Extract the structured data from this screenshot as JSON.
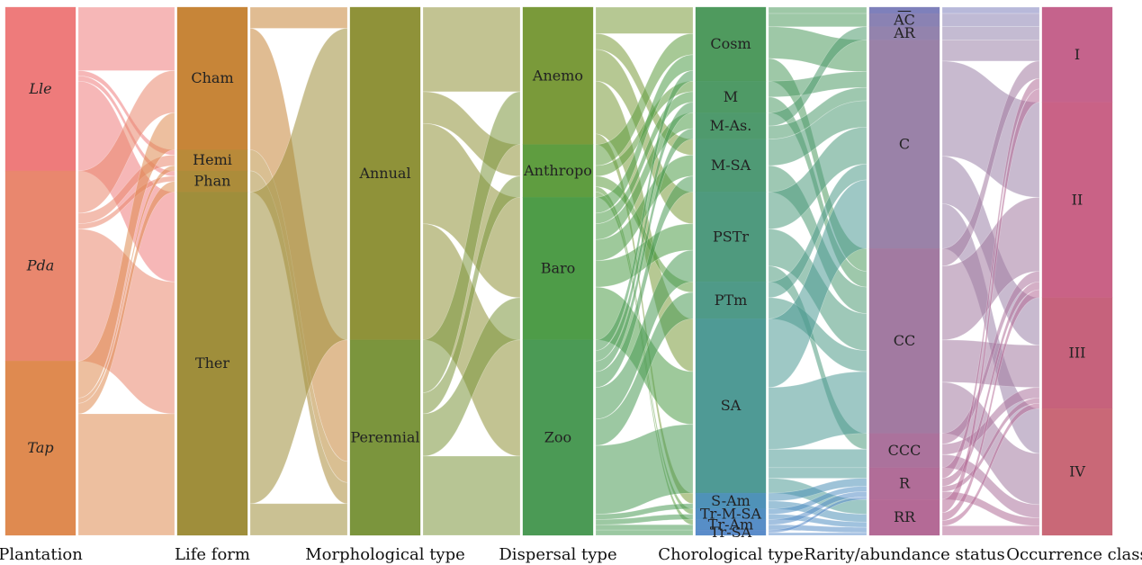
{
  "chart_data": {
    "type": "sankey",
    "title": "",
    "columns": [
      {
        "key": "plantation",
        "label": "Plantation",
        "italic": true,
        "nodes": [
          {
            "name": "Lle",
            "value": 31,
            "color": "#ee7b7b"
          },
          {
            "name": "Pda",
            "value": 36,
            "color": "#e9876e"
          },
          {
            "name": "Tap",
            "value": 33,
            "color": "#df8a50"
          }
        ]
      },
      {
        "key": "life_form",
        "label": "Life form",
        "nodes": [
          {
            "name": "Cham",
            "value": 27,
            "color": "#c78538"
          },
          {
            "name": "Hemi",
            "value": 4,
            "color": "#b98a39"
          },
          {
            "name": "Phan",
            "value": 4,
            "color": "#ac8c3a"
          },
          {
            "name": "Ther",
            "value": 65,
            "color": "#9f8e3b"
          }
        ]
      },
      {
        "key": "morphological_type",
        "label": "Morphological type",
        "nodes": [
          {
            "name": "Annual",
            "value": 63,
            "color": "#8f9239"
          },
          {
            "name": "Perennial",
            "value": 37,
            "color": "#7b953d"
          }
        ]
      },
      {
        "key": "dispersal_type",
        "label": "Dispersal type",
        "nodes": [
          {
            "name": "Anemo",
            "value": 26,
            "color": "#7a9a3a"
          },
          {
            "name": "Anthropo",
            "value": 10,
            "color": "#5f9d40"
          },
          {
            "name": "Baro",
            "value": 27,
            "color": "#4e9c48"
          },
          {
            "name": "Zoo",
            "value": 37,
            "color": "#4b9a55"
          }
        ]
      },
      {
        "key": "chorological_type",
        "label": "Chorological type",
        "nodes": [
          {
            "name": "Cosm",
            "value": 14,
            "color": "#4f9a5e"
          },
          {
            "name": "M",
            "value": 6,
            "color": "#4f9a66"
          },
          {
            "name": "M-As.",
            "value": 5,
            "color": "#4f9a6d"
          },
          {
            "name": "M-SA",
            "value": 10,
            "color": "#4f9a75"
          },
          {
            "name": "PSTr",
            "value": 17,
            "color": "#4f9a7e"
          },
          {
            "name": "PTm",
            "value": 7,
            "color": "#4f9a88"
          },
          {
            "name": "SA",
            "value": 33,
            "color": "#4f9a95"
          },
          {
            "name": "S-Am",
            "value": 3,
            "color": "#4f92b8"
          },
          {
            "name": "Tr-M-SA",
            "value": 2,
            "color": "#528fc2"
          },
          {
            "name": "Tr-Am",
            "value": 2,
            "color": "#578ec7"
          },
          {
            "name": "Tr-SA",
            "value": 1,
            "color": "#5b8cca"
          }
        ]
      },
      {
        "key": "rarity_abundance_status",
        "label": "Rarity/abundance status",
        "nodes": [
          {
            "name": "—",
            "value": 1.2,
            "color": "#7e80bb"
          },
          {
            "name": "AC",
            "value": 2.5,
            "color": "#8a82b3"
          },
          {
            "name": "AR",
            "value": 2.5,
            "color": "#9383ad"
          },
          {
            "name": "C",
            "value": 39.5,
            "color": "#9a82a8"
          },
          {
            "name": "CC",
            "value": 35,
            "color": "#a27aa1"
          },
          {
            "name": "CCC",
            "value": 6.5,
            "color": "#ab729c"
          },
          {
            "name": "R",
            "value": 6,
            "color": "#b16d98"
          },
          {
            "name": "RR",
            "value": 6.8,
            "color": "#b46a96"
          }
        ]
      },
      {
        "key": "occurrence_class",
        "label": "Occurrence class",
        "nodes": [
          {
            "name": "I",
            "value": 18,
            "color": "#c5638c"
          },
          {
            "name": "II",
            "value": 37,
            "color": "#c96286"
          },
          {
            "name": "III",
            "value": 21,
            "color": "#c6627c"
          },
          {
            "name": "IV",
            "value": 24,
            "color": "#c96877"
          }
        ]
      }
    ],
    "links": [
      {
        "stage": 0,
        "source": "Lle",
        "target": "Cham",
        "value": 12
      },
      {
        "stage": 0,
        "source": "Lle",
        "target": "Hemi",
        "value": 1
      },
      {
        "stage": 0,
        "source": "Lle",
        "target": "Phan",
        "value": 1
      },
      {
        "stage": 0,
        "source": "Lle",
        "target": "Ther",
        "value": 17
      },
      {
        "stage": 0,
        "source": "Pda",
        "target": "Cham",
        "value": 8
      },
      {
        "stage": 0,
        "source": "Pda",
        "target": "Hemi",
        "value": 2
      },
      {
        "stage": 0,
        "source": "Pda",
        "target": "Phan",
        "value": 1
      },
      {
        "stage": 0,
        "source": "Pda",
        "target": "Ther",
        "value": 25
      },
      {
        "stage": 0,
        "source": "Tap",
        "target": "Cham",
        "value": 7
      },
      {
        "stage": 0,
        "source": "Tap",
        "target": "Hemi",
        "value": 1
      },
      {
        "stage": 0,
        "source": "Tap",
        "target": "Phan",
        "value": 2
      },
      {
        "stage": 0,
        "source": "Tap",
        "target": "Ther",
        "value": 23
      },
      {
        "stage": 1,
        "source": "Cham",
        "target": "Annual",
        "value": 4
      },
      {
        "stage": 1,
        "source": "Cham",
        "target": "Perennial",
        "value": 23
      },
      {
        "stage": 1,
        "source": "Hemi",
        "target": "Perennial",
        "value": 4
      },
      {
        "stage": 1,
        "source": "Phan",
        "target": "Perennial",
        "value": 4
      },
      {
        "stage": 1,
        "source": "Ther",
        "target": "Annual",
        "value": 59
      },
      {
        "stage": 1,
        "source": "Ther",
        "target": "Perennial",
        "value": 6
      },
      {
        "stage": 2,
        "source": "Annual",
        "target": "Anemo",
        "value": 16
      },
      {
        "stage": 2,
        "source": "Annual",
        "target": "Anthropo",
        "value": 6
      },
      {
        "stage": 2,
        "source": "Annual",
        "target": "Baro",
        "value": 19
      },
      {
        "stage": 2,
        "source": "Annual",
        "target": "Zoo",
        "value": 22
      },
      {
        "stage": 2,
        "source": "Perennial",
        "target": "Anemo",
        "value": 10
      },
      {
        "stage": 2,
        "source": "Perennial",
        "target": "Anthropo",
        "value": 4
      },
      {
        "stage": 2,
        "source": "Perennial",
        "target": "Baro",
        "value": 8
      },
      {
        "stage": 2,
        "source": "Perennial",
        "target": "Zoo",
        "value": 15
      },
      {
        "stage": 3,
        "source": "Anemo",
        "target": "Cosm",
        "value": 5
      },
      {
        "stage": 3,
        "source": "Anemo",
        "target": "M-SA",
        "value": 3
      },
      {
        "stage": 3,
        "source": "Anemo",
        "target": "PSTr",
        "value": 6
      },
      {
        "stage": 3,
        "source": "Anemo",
        "target": "SA",
        "value": 10
      },
      {
        "stage": 3,
        "source": "Anemo",
        "target": "S-Am",
        "value": 2
      },
      {
        "stage": 3,
        "source": "Anthropo",
        "target": "Cosm",
        "value": 4
      },
      {
        "stage": 3,
        "source": "Anthropo",
        "target": "M",
        "value": 2
      },
      {
        "stage": 3,
        "source": "Anthropo",
        "target": "PTm",
        "value": 2
      },
      {
        "stage": 3,
        "source": "Anthropo",
        "target": "Tr-M-SA",
        "value": 1
      },
      {
        "stage": 3,
        "source": "Anthropo",
        "target": "Tr-Am",
        "value": 1
      },
      {
        "stage": 3,
        "source": "Baro",
        "target": "Cosm",
        "value": 3
      },
      {
        "stage": 3,
        "source": "Baro",
        "target": "M",
        "value": 2
      },
      {
        "stage": 3,
        "source": "Baro",
        "target": "M-As.",
        "value": 3
      },
      {
        "stage": 3,
        "source": "Baro",
        "target": "M-SA",
        "value": 4
      },
      {
        "stage": 3,
        "source": "Baro",
        "target": "PSTr",
        "value": 5
      },
      {
        "stage": 3,
        "source": "Baro",
        "target": "SA",
        "value": 10
      },
      {
        "stage": 3,
        "source": "Zoo",
        "target": "Cosm",
        "value": 2
      },
      {
        "stage": 3,
        "source": "Zoo",
        "target": "M",
        "value": 2
      },
      {
        "stage": 3,
        "source": "Zoo",
        "target": "M-As.",
        "value": 2
      },
      {
        "stage": 3,
        "source": "Zoo",
        "target": "M-SA",
        "value": 3
      },
      {
        "stage": 3,
        "source": "Zoo",
        "target": "PSTr",
        "value": 6
      },
      {
        "stage": 3,
        "source": "Zoo",
        "target": "PTm",
        "value": 5
      },
      {
        "stage": 3,
        "source": "Zoo",
        "target": "SA",
        "value": 13
      },
      {
        "stage": 3,
        "source": "Zoo",
        "target": "S-Am",
        "value": 1
      },
      {
        "stage": 3,
        "source": "Zoo",
        "target": "Tr-M-SA",
        "value": 1
      },
      {
        "stage": 3,
        "source": "Zoo",
        "target": "Tr-Am",
        "value": 1
      },
      {
        "stage": 3,
        "source": "Zoo",
        "target": "Tr-SA",
        "value": 1
      },
      {
        "stage": 4,
        "source": "Cosm",
        "target": "—",
        "value": 1.2
      },
      {
        "stage": 4,
        "source": "Cosm",
        "target": "AC",
        "value": 2.5
      },
      {
        "stage": 4,
        "source": "Cosm",
        "target": "C",
        "value": 6
      },
      {
        "stage": 4,
        "source": "Cosm",
        "target": "CC",
        "value": 4.3
      },
      {
        "stage": 4,
        "source": "M",
        "target": "C",
        "value": 3
      },
      {
        "stage": 4,
        "source": "M",
        "target": "CC",
        "value": 3
      },
      {
        "stage": 4,
        "source": "M-As.",
        "target": "AR",
        "value": 2.5
      },
      {
        "stage": 4,
        "source": "M-As.",
        "target": "C",
        "value": 2.5
      },
      {
        "stage": 4,
        "source": "M-SA",
        "target": "C",
        "value": 5
      },
      {
        "stage": 4,
        "source": "M-SA",
        "target": "CC",
        "value": 5
      },
      {
        "stage": 4,
        "source": "PSTr",
        "target": "C",
        "value": 7
      },
      {
        "stage": 4,
        "source": "PSTr",
        "target": "CC",
        "value": 7
      },
      {
        "stage": 4,
        "source": "PSTr",
        "target": "CCC",
        "value": 3
      },
      {
        "stage": 4,
        "source": "PTm",
        "target": "C",
        "value": 3
      },
      {
        "stage": 4,
        "source": "PTm",
        "target": "CC",
        "value": 4
      },
      {
        "stage": 4,
        "source": "SA",
        "target": "C",
        "value": 13
      },
      {
        "stage": 4,
        "source": "SA",
        "target": "CC",
        "value": 11.7
      },
      {
        "stage": 4,
        "source": "SA",
        "target": "CCC",
        "value": 3.5
      },
      {
        "stage": 4,
        "source": "SA",
        "target": "R",
        "value": 2
      },
      {
        "stage": 4,
        "source": "SA",
        "target": "RR",
        "value": 2.8
      },
      {
        "stage": 4,
        "source": "S-Am",
        "target": "R",
        "value": 1.5
      },
      {
        "stage": 4,
        "source": "S-Am",
        "target": "RR",
        "value": 1.5
      },
      {
        "stage": 4,
        "source": "Tr-M-SA",
        "target": "R",
        "value": 1
      },
      {
        "stage": 4,
        "source": "Tr-M-SA",
        "target": "RR",
        "value": 1
      },
      {
        "stage": 4,
        "source": "Tr-Am",
        "target": "R",
        "value": 1
      },
      {
        "stage": 4,
        "source": "Tr-Am",
        "target": "RR",
        "value": 1
      },
      {
        "stage": 4,
        "source": "Tr-SA",
        "target": "R",
        "value": 0.5
      },
      {
        "stage": 4,
        "source": "Tr-SA",
        "target": "RR",
        "value": 0.5
      },
      {
        "stage": 5,
        "source": "—",
        "target": "I",
        "value": 1.2
      },
      {
        "stage": 5,
        "source": "AC",
        "target": "I",
        "value": 2.5
      },
      {
        "stage": 5,
        "source": "AR",
        "target": "I",
        "value": 2.5
      },
      {
        "stage": 5,
        "source": "C",
        "target": "I",
        "value": 4
      },
      {
        "stage": 5,
        "source": "C",
        "target": "II",
        "value": 18
      },
      {
        "stage": 5,
        "source": "C",
        "target": "III",
        "value": 9
      },
      {
        "stage": 5,
        "source": "C",
        "target": "IV",
        "value": 8.5
      },
      {
        "stage": 5,
        "source": "CC",
        "target": "I",
        "value": 3.3
      },
      {
        "stage": 5,
        "source": "CC",
        "target": "II",
        "value": 14
      },
      {
        "stage": 5,
        "source": "CC",
        "target": "III",
        "value": 8
      },
      {
        "stage": 5,
        "source": "CC",
        "target": "IV",
        "value": 9.7
      },
      {
        "stage": 5,
        "source": "CCC",
        "target": "II",
        "value": 2
      },
      {
        "stage": 5,
        "source": "CCC",
        "target": "III",
        "value": 2
      },
      {
        "stage": 5,
        "source": "CCC",
        "target": "IV",
        "value": 2.5
      },
      {
        "stage": 5,
        "source": "R",
        "target": "I",
        "value": 2
      },
      {
        "stage": 5,
        "source": "R",
        "target": "II",
        "value": 1.5
      },
      {
        "stage": 5,
        "source": "R",
        "target": "III",
        "value": 1
      },
      {
        "stage": 5,
        "source": "R",
        "target": "IV",
        "value": 1.5
      },
      {
        "stage": 5,
        "source": "RR",
        "target": "I",
        "value": 2.5
      },
      {
        "stage": 5,
        "source": "RR",
        "target": "II",
        "value": 1.5
      },
      {
        "stage": 5,
        "source": "RR",
        "target": "III",
        "value": 1
      },
      {
        "stage": 5,
        "source": "RR",
        "target": "IV",
        "value": 1.8
      }
    ]
  }
}
